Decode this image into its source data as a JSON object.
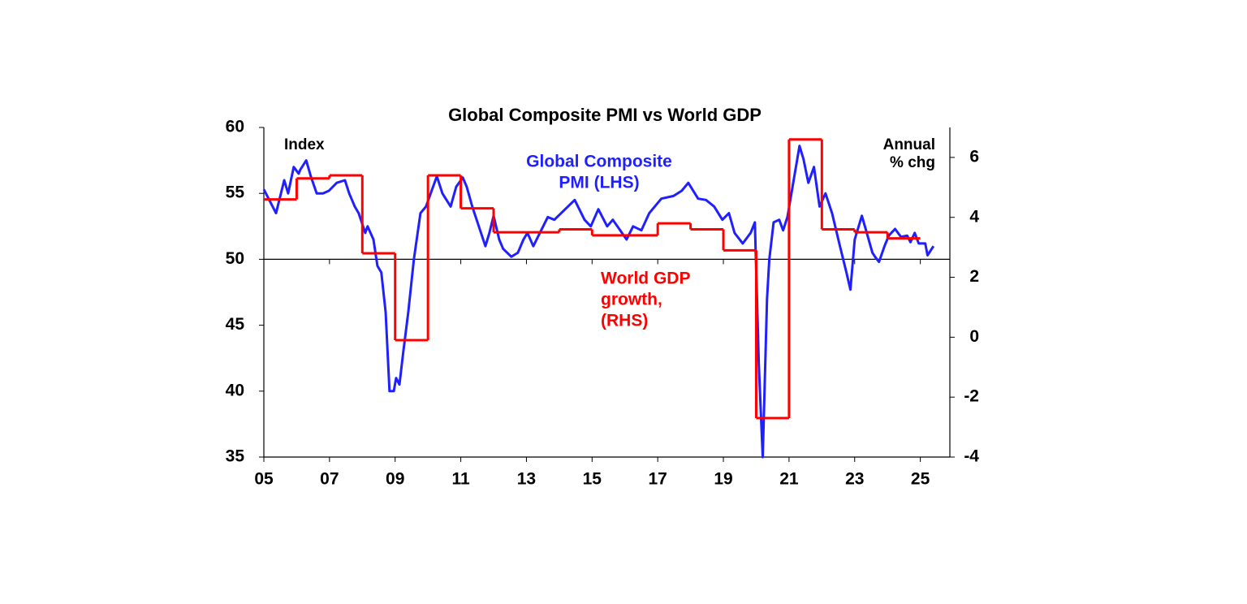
{
  "chart_data": {
    "type": "line",
    "title": "Global Composite PMI vs World GDP",
    "y_label": "Index",
    "y2_label": [
      "Annual",
      "% chg"
    ],
    "xlim": [
      2005,
      2025.9
    ],
    "xticks": [
      {
        "value": 2005,
        "label": "05"
      },
      {
        "value": 2007,
        "label": "07"
      },
      {
        "value": 2009,
        "label": "09"
      },
      {
        "value": 2011,
        "label": "11"
      },
      {
        "value": 2013,
        "label": "13"
      },
      {
        "value": 2015,
        "label": "15"
      },
      {
        "value": 2017,
        "label": "17"
      },
      {
        "value": 2019,
        "label": "19"
      },
      {
        "value": 2021,
        "label": "21"
      },
      {
        "value": 2023,
        "label": "23"
      },
      {
        "value": 2025,
        "label": "25"
      }
    ],
    "ylim": [
      35,
      60
    ],
    "yticks": [
      35,
      40,
      45,
      50,
      55,
      60
    ],
    "y2lim": [
      -4,
      7
    ],
    "y2ticks": [
      -4,
      -2,
      0,
      2,
      4,
      6
    ],
    "x_axis_crosses_y": 50,
    "series": [
      {
        "label": [
          "Global Composite",
          "PMI (LHS)"
        ],
        "color": "#1f1fff",
        "x": [
          2005.0,
          2005.37,
          2005.62,
          2005.74,
          2005.91,
          2006.06,
          2006.11,
          2006.29,
          2006.43,
          2006.61,
          2006.8,
          2006.98,
          2007.22,
          2007.47,
          2007.6,
          2007.77,
          2007.89,
          2008.09,
          2008.16,
          2008.34,
          2008.46,
          2008.58,
          2008.71,
          2008.83,
          2008.96,
          2009.03,
          2009.13,
          2009.25,
          2009.4,
          2009.57,
          2009.77,
          2009.94,
          2010.27,
          2010.44,
          2010.69,
          2010.86,
          2011.06,
          2011.18,
          2011.35,
          2011.55,
          2011.75,
          2011.87,
          2012.0,
          2012.17,
          2012.29,
          2012.54,
          2012.74,
          2012.91,
          2013.03,
          2013.21,
          2013.41,
          2013.65,
          2013.85,
          2014.47,
          2014.77,
          2014.96,
          2015.19,
          2015.46,
          2015.63,
          2016.05,
          2016.25,
          2016.5,
          2016.74,
          2017.11,
          2017.48,
          2017.73,
          2017.93,
          2018.23,
          2018.47,
          2018.72,
          2018.97,
          2019.17,
          2019.34,
          2019.59,
          2019.83,
          2019.96,
          2020.08,
          2020.2,
          2020.33,
          2020.4,
          2020.53,
          2020.7,
          2020.82,
          2020.95,
          2021.14,
          2021.32,
          2021.44,
          2021.59,
          2021.76,
          2021.93,
          2022.11,
          2022.31,
          2022.55,
          2022.75,
          2022.87,
          2023.0,
          2023.22,
          2023.37,
          2023.54,
          2023.62,
          2023.74,
          2023.91,
          2024.04,
          2024.23,
          2024.41,
          2024.6,
          2024.7,
          2024.83,
          2024.95,
          2025.15,
          2025.22,
          2025.4
        ],
        "values": [
          55.3,
          53.5,
          56,
          55,
          57,
          56.5,
          56.8,
          57.5,
          56.3,
          55,
          55,
          55.2,
          55.8,
          56,
          55,
          54,
          53.5,
          52,
          52.5,
          51.5,
          49.5,
          49,
          46,
          40,
          40,
          41,
          40.5,
          43,
          46,
          50,
          53.5,
          54,
          56.3,
          55,
          54,
          55.5,
          56.2,
          55.5,
          54,
          52.5,
          51,
          52,
          53.3,
          51.5,
          50.8,
          50.2,
          50.5,
          51.5,
          52,
          51,
          52,
          53.2,
          53,
          54.5,
          53,
          52.5,
          53.8,
          52.5,
          53,
          51.5,
          52.5,
          52.2,
          53.5,
          54.6,
          54.8,
          55.2,
          55.8,
          54.6,
          54.5,
          54,
          53,
          53.5,
          52,
          51.2,
          52,
          52.8,
          42,
          35,
          47,
          50,
          52.8,
          53,
          52.2,
          53.2,
          56,
          58.6,
          57.6,
          55.8,
          57,
          54,
          55,
          53.5,
          51,
          49,
          47.7,
          51.5,
          53.3,
          52,
          50.5,
          50.2,
          49.8,
          51,
          51.8,
          52.3,
          51.7,
          51.8,
          51.3,
          52,
          51.2,
          51.2,
          50.3,
          51
        ]
      },
      {
        "label": [
          "World GDP",
          "growth,",
          "(RHS)"
        ],
        "color": "#ff0000",
        "axis": "y2",
        "step": true,
        "x": [
          2005,
          2006,
          2007,
          2008,
          2009,
          2010,
          2011,
          2012,
          2013,
          2014,
          2015,
          2016,
          2017,
          2018,
          2019,
          2020,
          2021,
          2022,
          2023,
          2024
        ],
        "values": [
          4.6,
          5.3,
          5.4,
          2.8,
          -0.1,
          5.4,
          4.3,
          3.5,
          3.5,
          3.6,
          3.4,
          3.4,
          3.8,
          3.6,
          2.9,
          -2.7,
          6.6,
          3.6,
          3.5,
          3.3
        ]
      }
    ]
  }
}
